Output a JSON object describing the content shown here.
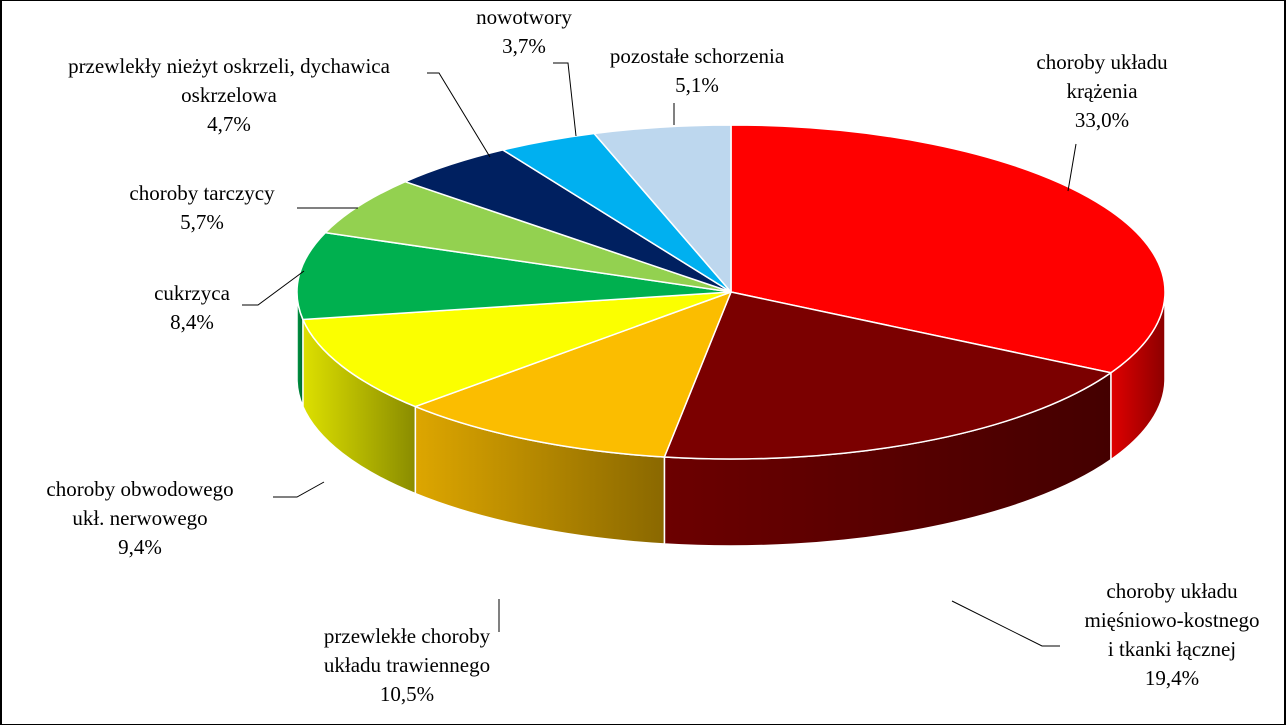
{
  "chart_data": {
    "type": "pie",
    "slices": [
      {
        "label": "choroby układu krążenia",
        "value": 33.0,
        "value_text": "33,0%",
        "color": "#ff0000"
      },
      {
        "label": "choroby układu mięśniowo-kostnego i tkanki łącznej",
        "value": 19.4,
        "value_text": "19,4%",
        "color": "#7b0000"
      },
      {
        "label": "przewlekłe choroby układu trawiennego",
        "value": 10.5,
        "value_text": "10,5%",
        "color": "#fbbd00"
      },
      {
        "label": "choroby obwodowego ukł. nerwowego",
        "value": 9.4,
        "value_text": "9,4%",
        "color": "#fbff00"
      },
      {
        "label": "cukrzyca",
        "value": 8.4,
        "value_text": "8,4%",
        "color": "#00b04f"
      },
      {
        "label": "choroby tarczycy",
        "value": 5.7,
        "value_text": "5,7%",
        "color": "#93d150"
      },
      {
        "label": "przewlekły nieżyt oskrzeli, dychawica oskrzelowa",
        "value": 4.7,
        "value_text": "4,7%",
        "color": "#002060"
      },
      {
        "label": "nowotwory",
        "value": 3.7,
        "value_text": "3,7%",
        "color": "#00b0f0"
      },
      {
        "label": "pozostałe schorzenia",
        "value": 5.1,
        "value_text": "5,1%",
        "color": "#bdd7ee"
      }
    ],
    "labels": [
      {
        "lines": [
          "choroby układu",
          "krążenia",
          "33,0%"
        ]
      },
      {
        "lines": [
          "choroby układu",
          "mięśniowo-kostnego",
          "i tkanki łącznej",
          "19,4%"
        ]
      },
      {
        "lines": [
          "przewlekłe choroby",
          "układu trawiennego",
          "10,5%"
        ]
      },
      {
        "lines": [
          "choroby obwodowego",
          "ukł. nerwowego",
          "9,4%"
        ]
      },
      {
        "lines": [
          "cukrzyca",
          "8,4%"
        ]
      },
      {
        "lines": [
          "choroby tarczycy",
          "5,7%"
        ]
      },
      {
        "lines": [
          "przewlekły nieżyt oskrzeli, dychawica",
          "oskrzelowa",
          "4,7%"
        ]
      },
      {
        "lines": [
          "nowotwory",
          "3,7%"
        ]
      },
      {
        "lines": [
          "pozostałe schorzenia",
          "5,1%"
        ]
      }
    ],
    "style": "3d-pie",
    "start": "12 o'clock, clockwise",
    "legend": "none"
  }
}
